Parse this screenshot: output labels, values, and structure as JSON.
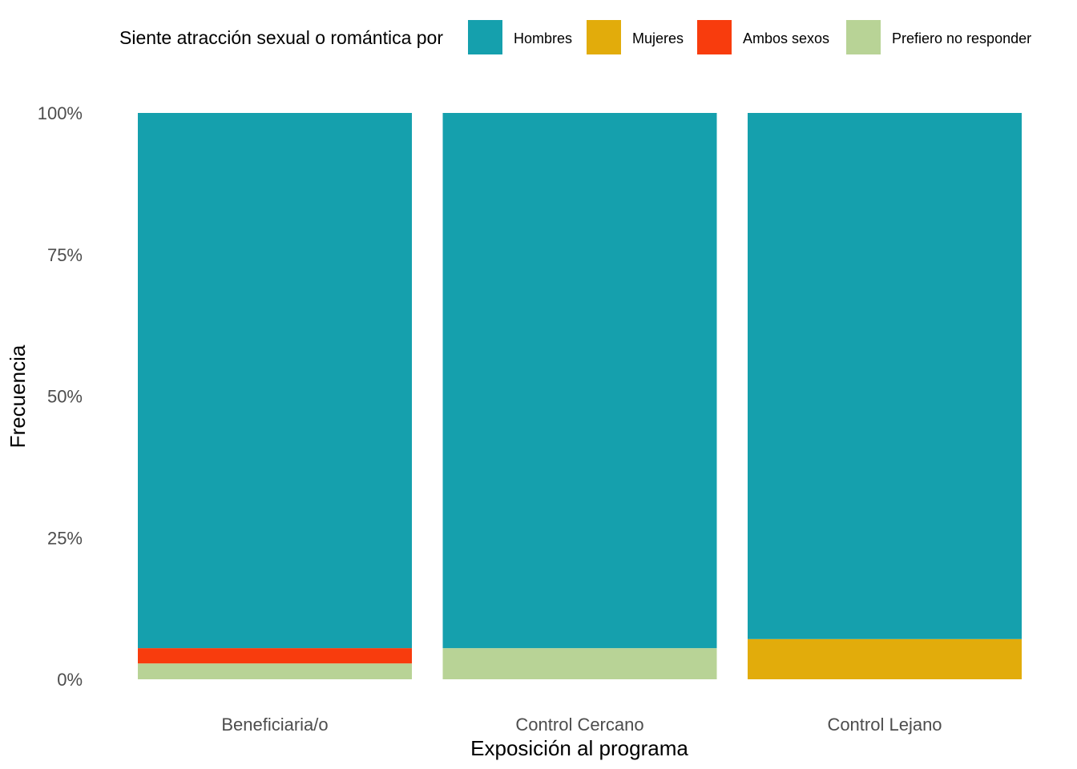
{
  "chart_data": {
    "type": "bar",
    "stacked": true,
    "normalized": true,
    "xlabel": "Exposición al programa",
    "ylabel": "Frecuencia",
    "categories": [
      "Beneficiaria/o",
      "Control Cercano",
      "Control Lejano"
    ],
    "yticks": [
      "0%",
      "25%",
      "50%",
      "75%",
      "100%"
    ],
    "ylim": [
      0,
      1
    ],
    "grid": false,
    "legend": {
      "title": "Siente atracción sexual o romántica por",
      "position": "top"
    },
    "series": [
      {
        "name": "Hombres",
        "color": "#15A0AD",
        "values": [
          0.945,
          0.945,
          0.929
        ]
      },
      {
        "name": "Mujeres",
        "color": "#E2AC0B",
        "values": [
          0.0,
          0.0,
          0.071
        ]
      },
      {
        "name": "Ambos sexos",
        "color": "#F83C0D",
        "values": [
          0.027,
          0.0,
          0.0
        ]
      },
      {
        "name": "Prefiero no responder",
        "color": "#B8D396",
        "values": [
          0.028,
          0.055,
          0.0
        ]
      }
    ]
  }
}
